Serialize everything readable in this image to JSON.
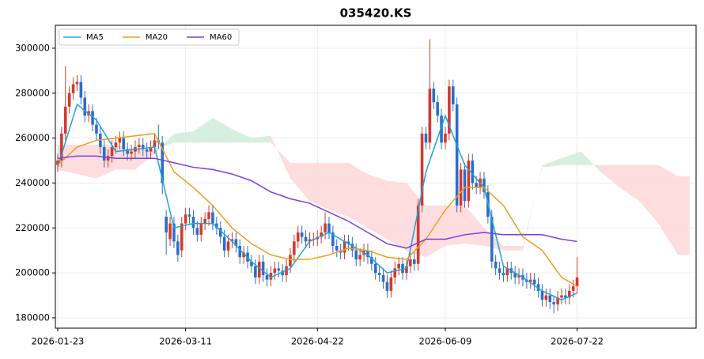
{
  "chart_data": {
    "type": "candlestick",
    "title": "035420.KS",
    "xlim": [
      -0.6,
      164.7
    ],
    "xticks": [
      {
        "value": 0,
        "label": "2026-01-23"
      },
      {
        "value": 33,
        "label": "2026-03-11"
      },
      {
        "value": 67,
        "label": "2026-04-22"
      },
      {
        "value": 100,
        "label": "2026-06-09"
      },
      {
        "value": 134,
        "label": "2026-07-22"
      }
    ],
    "ylim": [
      175400,
      310200
    ],
    "yticks": [
      180000,
      200000,
      220000,
      240000,
      260000,
      280000,
      300000
    ],
    "grid": true,
    "legend": "upper left",
    "up_color": "#d13b2e",
    "down_color": "#2d6ec8",
    "open": [
      248000,
      250000,
      262000,
      274000,
      280000,
      284000,
      285000,
      278000,
      270000,
      272000,
      266000,
      262000,
      256000,
      250000,
      252000,
      256000,
      258000,
      260000,
      255000,
      253000,
      254000,
      256000,
      257000,
      255000,
      254000,
      256000,
      259000,
      258000,
      225000,
      215000,
      222000,
      214000,
      210000,
      222000,
      226000,
      225000,
      220000,
      217000,
      222000,
      224000,
      227000,
      222000,
      220000,
      216000,
      210000,
      214000,
      215000,
      212000,
      207000,
      209000,
      205000,
      203000,
      198000,
      205000,
      199000,
      197000,
      200000,
      202000,
      201000,
      199000,
      203000,
      208000,
      214000,
      218000,
      216000,
      214000,
      215000,
      215000,
      216000,
      218000,
      222000,
      218000,
      212000,
      210000,
      209000,
      214000,
      213000,
      210000,
      206000,
      208000,
      210000,
      207000,
      204000,
      200000,
      199000,
      196000,
      192000,
      198000,
      202000,
      204000,
      200000,
      203000,
      206000,
      204000,
      230000,
      262000,
      258000,
      282000,
      276000,
      270000,
      258000,
      262000,
      283000,
      275000,
      230000,
      246000,
      232000,
      250000,
      240000,
      238000,
      242000,
      236000,
      225000,
      205000,
      202000,
      200000,
      199000,
      202000,
      200000,
      198000,
      199000,
      197000,
      196000,
      197000,
      195000,
      192000,
      188000,
      190000,
      187000,
      186000,
      189000,
      190000,
      189000,
      192000,
      194000
    ],
    "high": [
      253000,
      265000,
      292000,
      283000,
      287000,
      288000,
      288000,
      281000,
      275000,
      275000,
      269000,
      265000,
      259000,
      255000,
      259000,
      261000,
      263000,
      263000,
      258000,
      257000,
      259000,
      260000,
      260000,
      258000,
      259000,
      262000,
      266000,
      261000,
      228000,
      225000,
      225000,
      217000,
      225000,
      229000,
      229000,
      228000,
      223000,
      225000,
      227000,
      230000,
      230000,
      225000,
      223000,
      219000,
      217000,
      218000,
      218000,
      215000,
      212000,
      212000,
      208000,
      206000,
      208000,
      208000,
      202000,
      203000,
      205000,
      205000,
      204000,
      206000,
      211000,
      217000,
      221000,
      221000,
      219000,
      218000,
      218000,
      219000,
      221000,
      227000,
      225000,
      221000,
      215000,
      213000,
      217000,
      217000,
      216000,
      213000,
      211000,
      213000,
      213000,
      210000,
      207000,
      203000,
      202000,
      199000,
      201000,
      205000,
      207000,
      207000,
      206000,
      209000,
      209000,
      233000,
      265000,
      265000,
      304000,
      285000,
      279000,
      273000,
      265000,
      286000,
      286000,
      278000,
      249000,
      249000,
      253000,
      253000,
      243000,
      245000,
      245000,
      239000,
      228000,
      208000,
      205000,
      203000,
      205000,
      205000,
      203000,
      202000,
      202000,
      200000,
      200000,
      200000,
      198000,
      195000,
      193000,
      193000,
      190000,
      192000,
      193000,
      193000,
      195000,
      197000,
      207000
    ],
    "low": [
      245000,
      247000,
      259000,
      271000,
      277000,
      281000,
      275000,
      267000,
      267000,
      263000,
      259000,
      253000,
      247000,
      247000,
      249000,
      253000,
      255000,
      252000,
      250000,
      250000,
      251000,
      253000,
      252000,
      251000,
      251000,
      253000,
      255000,
      235000,
      208000,
      212000,
      211000,
      205000,
      207000,
      219000,
      222000,
      217000,
      214000,
      214000,
      219000,
      221000,
      219000,
      217000,
      213000,
      207000,
      207000,
      211000,
      209000,
      204000,
      204000,
      202000,
      200000,
      195000,
      195000,
      196000,
      194000,
      194000,
      197000,
      198000,
      196000,
      196000,
      200000,
      205000,
      211000,
      213000,
      211000,
      211000,
      212000,
      212000,
      213000,
      215000,
      215000,
      209000,
      207000,
      206000,
      206000,
      210000,
      207000,
      203000,
      203000,
      205000,
      204000,
      201000,
      197000,
      196000,
      193000,
      189000,
      189000,
      195000,
      199000,
      197000,
      197000,
      200000,
      201000,
      201000,
      227000,
      255000,
      255000,
      273000,
      267000,
      255000,
      255000,
      259000,
      272000,
      227000,
      227000,
      229000,
      229000,
      237000,
      235000,
      235000,
      233000,
      222000,
      202000,
      199000,
      197000,
      196000,
      196000,
      197000,
      195000,
      195000,
      194000,
      193000,
      193000,
      192000,
      189000,
      185000,
      185000,
      184000,
      182000,
      183000,
      186000,
      186000,
      186000,
      189000,
      191000
    ],
    "close": [
      250000,
      262000,
      274000,
      280000,
      284000,
      285000,
      278000,
      270000,
      272000,
      266000,
      262000,
      256000,
      250000,
      252000,
      256000,
      258000,
      260000,
      255000,
      253000,
      254000,
      256000,
      257000,
      255000,
      254000,
      256000,
      259000,
      258000,
      240000,
      218000,
      222000,
      214000,
      208000,
      222000,
      226000,
      225000,
      220000,
      217000,
      222000,
      224000,
      227000,
      222000,
      220000,
      216000,
      210000,
      214000,
      215000,
      212000,
      207000,
      209000,
      205000,
      203000,
      198000,
      205000,
      199000,
      197000,
      200000,
      202000,
      201000,
      199000,
      203000,
      208000,
      214000,
      218000,
      216000,
      214000,
      215000,
      215000,
      216000,
      218000,
      222000,
      218000,
      212000,
      210000,
      209000,
      214000,
      213000,
      210000,
      206000,
      208000,
      210000,
      207000,
      204000,
      200000,
      199000,
      196000,
      192000,
      198000,
      202000,
      204000,
      200000,
      203000,
      206000,
      204000,
      230000,
      262000,
      258000,
      282000,
      276000,
      270000,
      258000,
      262000,
      283000,
      275000,
      230000,
      246000,
      232000,
      250000,
      240000,
      238000,
      242000,
      236000,
      225000,
      205000,
      202000,
      200000,
      199000,
      202000,
      200000,
      198000,
      199000,
      197000,
      196000,
      197000,
      195000,
      192000,
      188000,
      190000,
      187000,
      186000,
      189000,
      190000,
      189000,
      192000,
      194000,
      198000
    ],
    "ma_x": [
      0,
      5,
      10,
      15,
      20,
      25,
      30,
      35,
      40,
      45,
      50,
      55,
      60,
      65,
      70,
      75,
      80,
      85,
      90,
      95,
      100,
      105,
      110,
      115,
      120,
      125,
      130,
      134
    ],
    "series": [
      {
        "name": "MA5",
        "color": "#1fa3dc",
        "values": [
          247000,
          275000,
          268000,
          254000,
          255000,
          256000,
          220000,
          222000,
          222000,
          214000,
          205000,
          198000,
          202000,
          214000,
          218000,
          213000,
          208000,
          200000,
          202000,
          245000,
          270000,
          248000,
          238000,
          203000,
          198000,
          192000,
          188000,
          191000
        ]
      },
      {
        "name": "MA20",
        "color": "#f29d1c",
        "values": [
          248000,
          256000,
          259000,
          260000,
          261000,
          262000,
          245000,
          238000,
          230000,
          220000,
          213000,
          208000,
          206000,
          206000,
          208000,
          211000,
          210000,
          207000,
          206000,
          215000,
          228000,
          238000,
          238000,
          230000,
          216000,
          210000,
          198000,
          194000
        ]
      },
      {
        "name": "MA60",
        "color": "#7a3fe0",
        "values": [
          251000,
          252000,
          252000,
          251000,
          251000,
          251000,
          249000,
          247000,
          246000,
          244000,
          241000,
          236000,
          233000,
          231000,
          227000,
          223000,
          218000,
          213000,
          211000,
          215000,
          215000,
          217000,
          218000,
          217000,
          217000,
          217000,
          215000,
          214000
        ]
      }
    ],
    "cloud": {
      "up_color": "#cdebd6",
      "down_color": "#fcd5d6",
      "x": [
        0,
        5,
        10,
        15,
        20,
        25,
        30,
        35,
        40,
        45,
        50,
        55,
        60,
        65,
        70,
        75,
        80,
        85,
        90,
        95,
        100,
        105,
        110,
        115,
        120,
        125,
        130,
        135,
        140,
        145,
        150,
        155,
        160,
        163
      ],
      "span_a": [
        246000,
        244000,
        242000,
        246000,
        246000,
        253000,
        262000,
        263000,
        269000,
        264000,
        260000,
        261000,
        242000,
        232000,
        228000,
        225000,
        220000,
        215000,
        210000,
        207000,
        212000,
        213000,
        212000,
        210000,
        210000,
        248000,
        251000,
        254000,
        245000,
        238000,
        232000,
        222000,
        208000,
        208000
      ],
      "span_b": [
        257000,
        257000,
        257000,
        257000,
        255000,
        255000,
        258000,
        258000,
        258000,
        258000,
        258000,
        258000,
        249000,
        249000,
        249000,
        249000,
        244000,
        241000,
        240000,
        230000,
        230000,
        230000,
        220000,
        212000,
        212000,
        247000,
        248000,
        248000,
        248000,
        248000,
        248000,
        248000,
        243000,
        243000
      ]
    }
  }
}
